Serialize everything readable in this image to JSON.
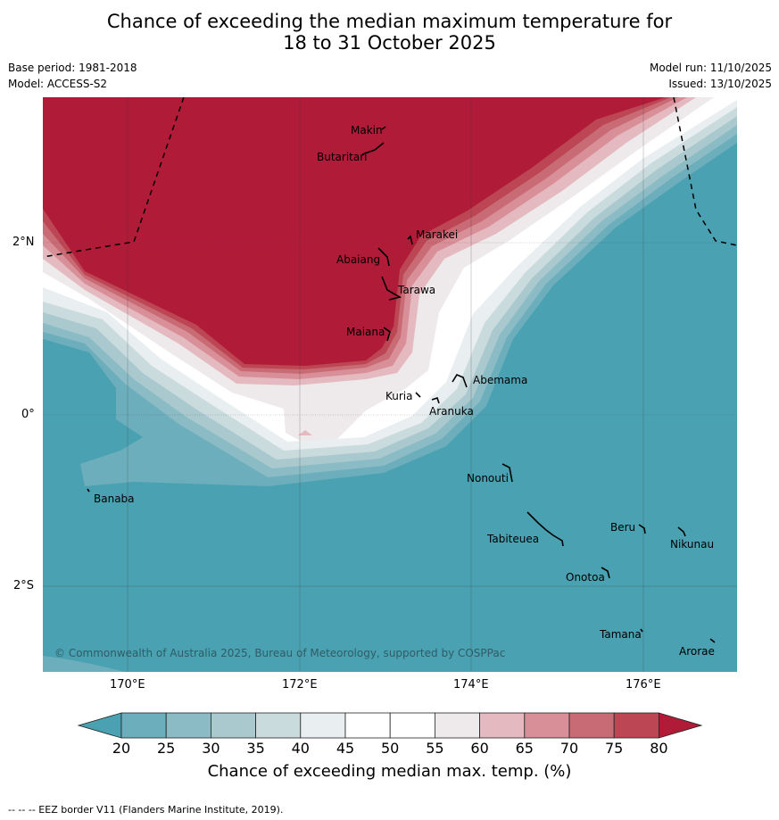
{
  "header": {
    "title_line1": "Chance of exceeding the median maximum temperature for",
    "title_line2": "18 to 31 October 2025",
    "base_period": "Base period: 1981-2018",
    "model": "Model: ACCESS-S2",
    "model_run": "Model run: 11/10/2025",
    "issued": "Issued: 13/10/2025"
  },
  "map": {
    "latitude_labels": [
      "2°N",
      "0°",
      "2°S"
    ],
    "longitude_labels": [
      "170°E",
      "172°E",
      "174°E",
      "176°E"
    ],
    "islands": [
      "Makin",
      "Butaritari",
      "Marakei",
      "Abaiang",
      "Tarawa",
      "Maiana",
      "Abemama",
      "Kuria",
      "Aranuka",
      "Nonouti",
      "Banaba",
      "Beru",
      "Tabiteuea",
      "Nikunau",
      "Onotoa",
      "Tamana",
      "Arorae"
    ],
    "copyright": "© Commonwealth of Australia 2025, Bureau of Meteorology, supported by COSPPac"
  },
  "colorbar": {
    "ticks": [
      "20",
      "25",
      "30",
      "35",
      "40",
      "45",
      "50",
      "55",
      "60",
      "65",
      "70",
      "75",
      "80"
    ],
    "label": "Chance of exceeding median max. temp. (%)",
    "colors": [
      "#4aa1b1",
      "#6caebb",
      "#8bbcc6",
      "#aac9cf",
      "#cadbde",
      "#e9eef0",
      "#ffffff",
      "#ffffff",
      "#eeeaeb",
      "#e4b9bf",
      "#d88f98",
      "#c96b75",
      "#bd4654",
      "#b01c38"
    ]
  },
  "footer": {
    "legend_note": "--  --  -- EEZ border V11 (Flanders Marine Institute, 2019)."
  }
}
